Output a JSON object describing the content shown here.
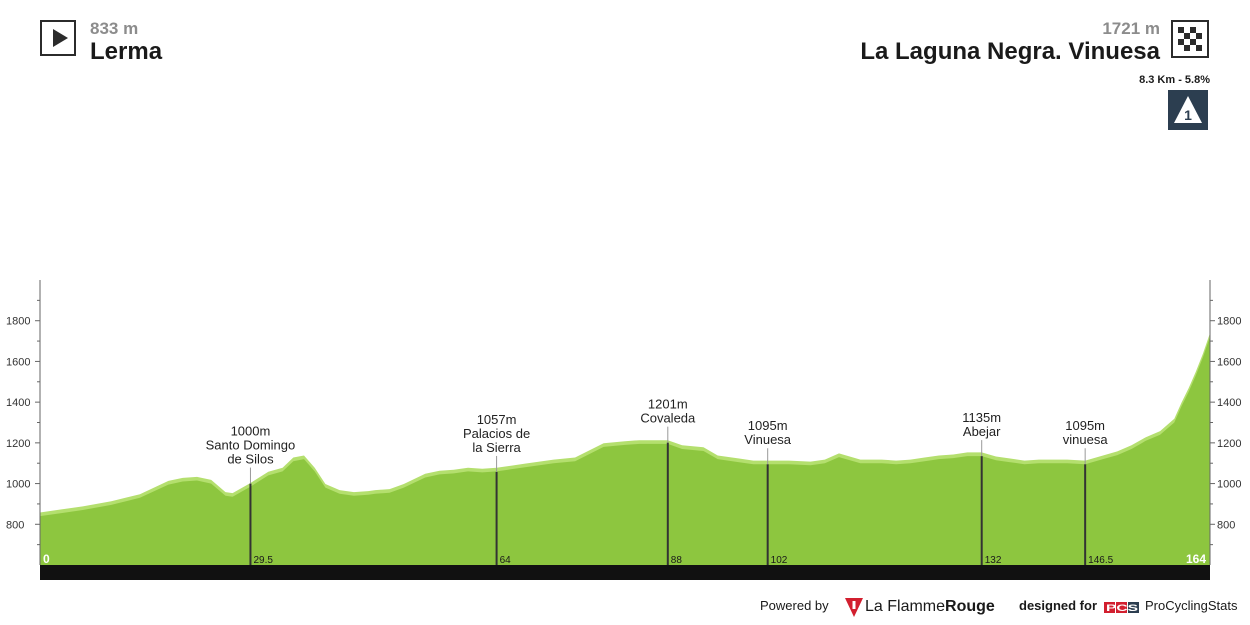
{
  "stage": {
    "start": {
      "altitude": "833 m",
      "name": "Lerma"
    },
    "finish": {
      "altitude": "1721 m",
      "name": "La Laguna Negra. Vinuesa"
    },
    "climb": {
      "stats": "8.3 Km - 5.8%",
      "category": "1"
    }
  },
  "footer": {
    "powered_by": "Powered by",
    "brand_prefix": "La Flamme",
    "brand_suffix": "Rouge",
    "designed_for": "designed for",
    "pcs_logo": "PCS",
    "site": "ProCyclingStats"
  },
  "colors": {
    "fill": "#8dc63f",
    "highlight": "#b4df6e",
    "bar": "#111111",
    "axis": "#666666",
    "badge": "#2c3e50"
  },
  "chart_data": {
    "type": "area",
    "xlabel": "",
    "ylabel": "",
    "xlim": [
      0,
      164
    ],
    "ylim": [
      600,
      2000
    ],
    "yticks": [
      800,
      1000,
      1200,
      1400,
      1600,
      1800
    ],
    "x_start_label": "0",
    "x_end_label": "164",
    "grid": false,
    "series": [
      {
        "x": [
          0,
          3,
          6,
          10,
          14,
          18,
          20,
          22,
          24,
          26,
          27,
          29.5,
          32,
          34,
          35.5,
          37,
          38.5,
          40,
          42,
          44,
          46,
          47,
          49,
          51,
          54,
          56,
          58,
          60,
          62,
          64,
          66,
          68,
          70,
          72,
          75,
          79,
          82,
          84,
          88,
          90,
          93,
          95,
          98,
          100,
          102,
          105,
          108,
          110,
          112,
          115,
          118,
          120,
          122,
          124,
          126,
          128,
          130,
          132,
          134,
          136,
          138,
          140,
          142,
          144,
          146.5,
          149,
          151,
          153,
          155,
          157,
          159,
          160,
          161,
          162,
          163,
          164
        ],
        "y": [
          840,
          855,
          870,
          895,
          930,
          995,
          1010,
          1015,
          1000,
          940,
          935,
          985,
          1040,
          1060,
          1110,
          1120,
          1060,
          980,
          950,
          940,
          945,
          950,
          955,
          980,
          1030,
          1045,
          1050,
          1060,
          1055,
          1060,
          1070,
          1080,
          1090,
          1100,
          1110,
          1180,
          1190,
          1195,
          1195,
          1170,
          1160,
          1120,
          1105,
          1095,
          1095,
          1095,
          1090,
          1100,
          1130,
          1100,
          1100,
          1095,
          1100,
          1110,
          1120,
          1125,
          1135,
          1135,
          1115,
          1105,
          1095,
          1100,
          1100,
          1100,
          1095,
          1120,
          1140,
          1170,
          1210,
          1240,
          1300,
          1380,
          1450,
          1530,
          1620,
          1721
        ]
      }
    ],
    "markers": [
      {
        "x": 29.5,
        "y": 1000,
        "label": "1000m",
        "place": "Santo Domingo de Silos",
        "lines": [
          "Santo Domingo",
          "de Silos"
        ],
        "km": "29.5"
      },
      {
        "x": 64,
        "y": 1057,
        "label": "1057m",
        "place": "Palacios de la Sierra",
        "lines": [
          "Palacios de",
          "la Sierra"
        ],
        "km": "64"
      },
      {
        "x": 88,
        "y": 1201,
        "label": "1201m",
        "place": "Covaleda",
        "lines": [
          "Covaleda"
        ],
        "km": "88"
      },
      {
        "x": 102,
        "y": 1095,
        "label": "1095m",
        "place": "Vinuesa",
        "lines": [
          "Vinuesa"
        ],
        "km": "102"
      },
      {
        "x": 132,
        "y": 1135,
        "label": "1135m",
        "place": "Abejar",
        "lines": [
          "Abejar"
        ],
        "km": "132"
      },
      {
        "x": 146.5,
        "y": 1095,
        "label": "1095m",
        "place": "vinuesa",
        "lines": [
          "vinuesa"
        ],
        "km": "146.5"
      }
    ]
  }
}
